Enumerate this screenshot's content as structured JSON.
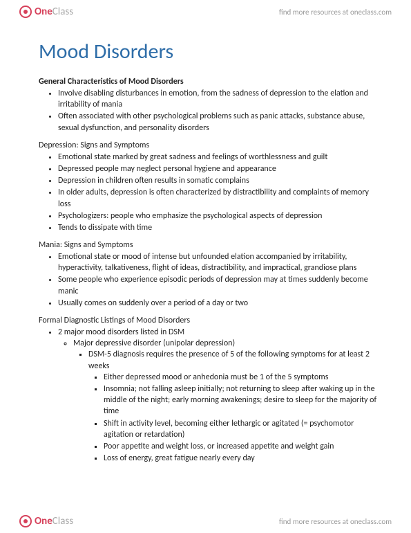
{
  "brand": {
    "one": "One",
    "class": "Class",
    "tagline": "find more resources at oneclass.com"
  },
  "title": "Mood Disorders",
  "sections": [
    {
      "heading": "General Characteristics of Mood Disorders",
      "bold": true,
      "items": [
        "Involve disabling disturbances in emotion, from the sadness of depression to the elation and irritability of mania",
        "Often associated with other psychological problems such as panic attacks, substance abuse, sexual dysfunction, and personality disorders"
      ]
    },
    {
      "heading": "Depression: Signs and Symptoms",
      "bold": false,
      "items": [
        "Emotional state marked by great sadness and feelings of worthlessness and guilt",
        "Depressed people may neglect personal hygiene and appearance",
        "Depression in children often results in somatic complains",
        "In older adults, depression is often characterized by distractibility and complaints of memory loss",
        "Psychologizers: people who emphasize the psychological aspects of depression",
        "Tends to dissipate with time"
      ]
    },
    {
      "heading": "Mania: Signs and Symptoms",
      "bold": false,
      "items": [
        "Emotional state or mood of intense but unfounded elation accompanied by irritability, hyperactivity, talkativeness, flight of ideas, distractibility, and impractical, grandiose plans",
        "Some people who experience episodic periods of depression may at times suddenly become manic",
        "Usually comes on suddenly over a period of a day or two"
      ]
    },
    {
      "heading": "Formal Diagnostic Listings of Mood Disorders",
      "bold": false,
      "nested": {
        "root": "2 major mood disorders listed in DSM",
        "child1": "Major depressive disorder (unipolar depression)",
        "child2": "DSM-5 diagnosis requires the presence of 5 of the following symptoms for at least 2 weeks",
        "leaves": [
          "Either depressed mood or anhedonia must be 1 of the 5 symptoms",
          "Insomnia; not falling asleep initially; not returning to sleep after waking up in the middle of the night; early morning awakenings; desire to sleep for the majority of time",
          "Shift in activity level, becoming either lethargic or agitated (= psychomotor agitation or retardation)",
          "Poor appetite and weight loss, or increased appetite and weight gain",
          "Loss of energy, great fatigue nearly every day"
        ]
      }
    }
  ]
}
